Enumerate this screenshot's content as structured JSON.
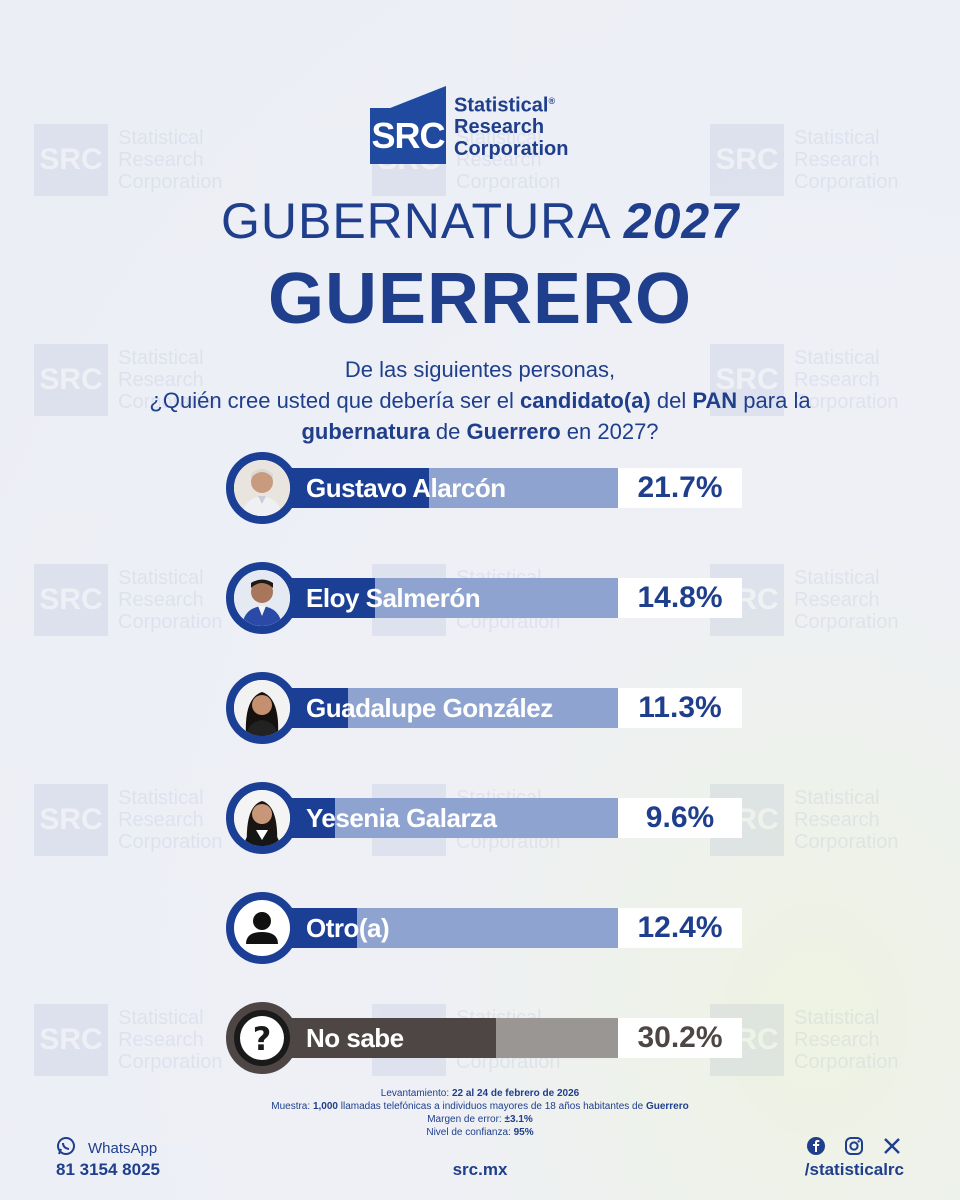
{
  "brand": {
    "mark": "SRC",
    "name_line1": "Statistical",
    "name_line2": "Research",
    "name_line3": "Corporation",
    "registered": "®"
  },
  "watermark": {
    "mark": "SRC",
    "line1": "Statistical",
    "line2": "Research",
    "line3": "Corporation"
  },
  "title": {
    "line1_text": "GUBERNATURA",
    "line1_year": "2027",
    "line2": "GUERRERO"
  },
  "question": {
    "p1": "De las siguientes personas,",
    "p2a": "¿Quién cree usted que debería ser el ",
    "p2b": "candidato(a)",
    "p2c": " del ",
    "p2d": "PAN",
    "p2e": " para la",
    "p3a": "gubernatura",
    "p3b": " de ",
    "p3c": "Guerrero",
    "p3d": " en 2027?"
  },
  "chart_data": {
    "type": "bar",
    "title": "GUBERNATURA 2027 GUERRERO",
    "categories": [
      "Gustavo Alarcón",
      "Eloy Salmerón",
      "Guadalupe González",
      "Yesenia Galarza",
      "Otro(a)",
      "No sabe"
    ],
    "values": [
      21.7,
      14.8,
      11.3,
      9.6,
      12.4,
      30.2
    ],
    "labels": [
      "21.7%",
      "14.8%",
      "11.3%",
      "9.6%",
      "12.4%",
      "30.2%"
    ],
    "xlim": [
      0,
      50
    ],
    "unit": "%"
  },
  "notes": {
    "l1_label": "Levantamiento: ",
    "l1_value": "22 al 24 de febrero de 2026",
    "l2_label": "Muestra: ",
    "l2_value": "1,000",
    "l2_text": " llamadas telefónicas a individuos mayores de 18 años habitantes de ",
    "l2_place": "Guerrero",
    "l3_label": "Margen de error: ",
    "l3_value": "±3.1%",
    "l4_label": "Nivel de confianza: ",
    "l4_value": "95%"
  },
  "footer": {
    "whatsapp_label": "WhatsApp",
    "whatsapp_number": "81 3154 8025",
    "website": "src.mx",
    "social_handle": "/statisticalrc",
    "colors": {
      "primary": "#1c3f96",
      "track": "#8ea3d0",
      "dark": "#4e4644"
    }
  }
}
